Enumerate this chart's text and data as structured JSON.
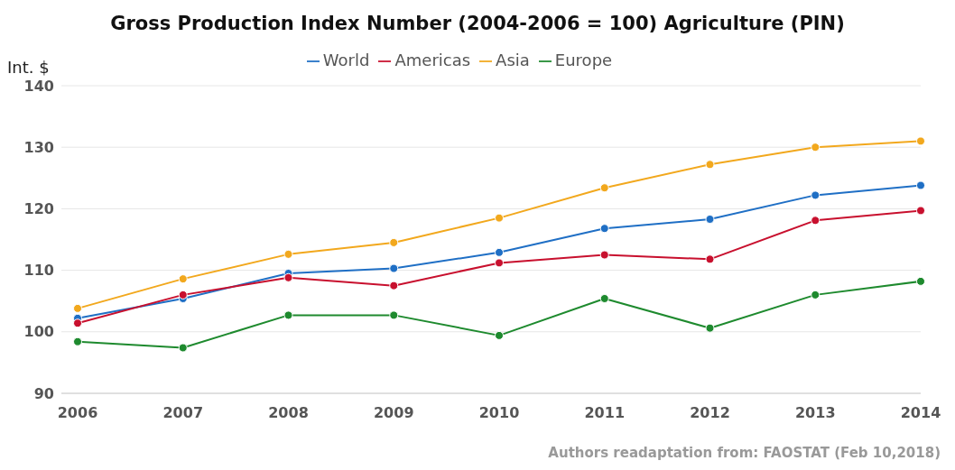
{
  "chart_data": {
    "type": "line",
    "title": "Gross Production Index Number (2004-2006 = 100) Agriculture (PIN)",
    "ylabel": "Int. $",
    "categories": [
      "2006",
      "2007",
      "2008",
      "2009",
      "2010",
      "2011",
      "2012",
      "2013",
      "2014"
    ],
    "series": [
      {
        "name": "World",
        "color": "#1f6fc5",
        "values": [
          102.2,
          105.4,
          109.5,
          110.3,
          112.9,
          116.8,
          118.3,
          122.2,
          123.8
        ]
      },
      {
        "name": "Americas",
        "color": "#c8102e",
        "values": [
          101.4,
          106.0,
          108.8,
          107.5,
          111.2,
          112.5,
          111.8,
          118.1,
          119.7
        ]
      },
      {
        "name": "Asia",
        "color": "#f2a81d",
        "values": [
          103.8,
          108.6,
          112.6,
          114.5,
          118.5,
          123.4,
          127.2,
          130.0,
          131.0
        ]
      },
      {
        "name": "Europe",
        "color": "#1e8a2e",
        "values": [
          98.4,
          97.4,
          102.7,
          102.7,
          99.4,
          105.4,
          100.6,
          106.0,
          108.2
        ]
      }
    ],
    "ylim": [
      90,
      140
    ],
    "yticks": [
      90,
      100,
      110,
      120,
      130,
      140
    ],
    "grid": "y",
    "legend": "top",
    "marker": "circle",
    "line_style": "solid",
    "annotations": [
      "Authors readaptation from: FAOSTAT (Feb 10,2018)"
    ]
  }
}
